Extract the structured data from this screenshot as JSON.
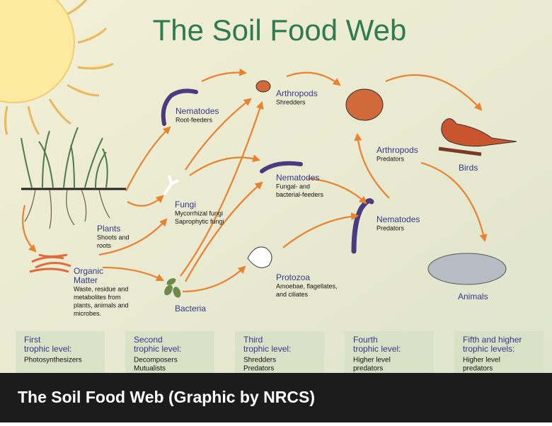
{
  "title": "The Soil Food Web",
  "nodes": [
    {
      "label": [
        "Plants"
      ],
      "details": [
        "Shoots and",
        "roots"
      ]
    },
    {
      "label": [
        "Organic",
        "Matter"
      ],
      "details": [
        "Waste, residue and",
        "metabolites from",
        "plants, animals and",
        "microbes."
      ]
    },
    {
      "label": [
        "Nematodes"
      ],
      "details": [
        "Root-feeders"
      ]
    },
    {
      "label": [
        "Fungi"
      ],
      "details": [
        "Mycorrhizal fungi",
        "Saprophytic fungi"
      ]
    },
    {
      "label": [
        "Bacteria"
      ],
      "details": []
    },
    {
      "label": [
        "Arthropods"
      ],
      "details": [
        "Shredders"
      ]
    },
    {
      "label": [
        "Nematodes"
      ],
      "details": [
        "Fungal- and",
        "bacterial-feeders"
      ]
    },
    {
      "label": [
        "Protozoa"
      ],
      "details": [
        "Amoebae, flagellates,",
        "and ciliates"
      ]
    },
    {
      "label": [
        "Arthropods"
      ],
      "details": [
        "Predators"
      ]
    },
    {
      "label": [
        "Nematodes"
      ],
      "details": [
        "Predators"
      ]
    },
    {
      "label": [
        "Birds"
      ],
      "details": []
    },
    {
      "label": [
        "Animals"
      ],
      "details": []
    }
  ],
  "trophic_levels": [
    {
      "title": [
        "First",
        "trophic level:"
      ],
      "details": [
        "Photosynthesizers"
      ]
    },
    {
      "title": [
        "Second",
        "trophic level:"
      ],
      "details": [
        "Decomposers",
        "Mutualists"
      ]
    },
    {
      "title": [
        "Third",
        "trophic level:"
      ],
      "details": [
        "Shredders",
        "Predators"
      ]
    },
    {
      "title": [
        "Fourth",
        "trophic level:"
      ],
      "details": [
        "Higher level",
        "predators"
      ]
    },
    {
      "title": [
        "Fifth and higher",
        "trophic levels:"
      ],
      "details": [
        "Higher level",
        "predators"
      ]
    }
  ],
  "caption": "The Soil Food Web (Graphic by NRCS)"
}
